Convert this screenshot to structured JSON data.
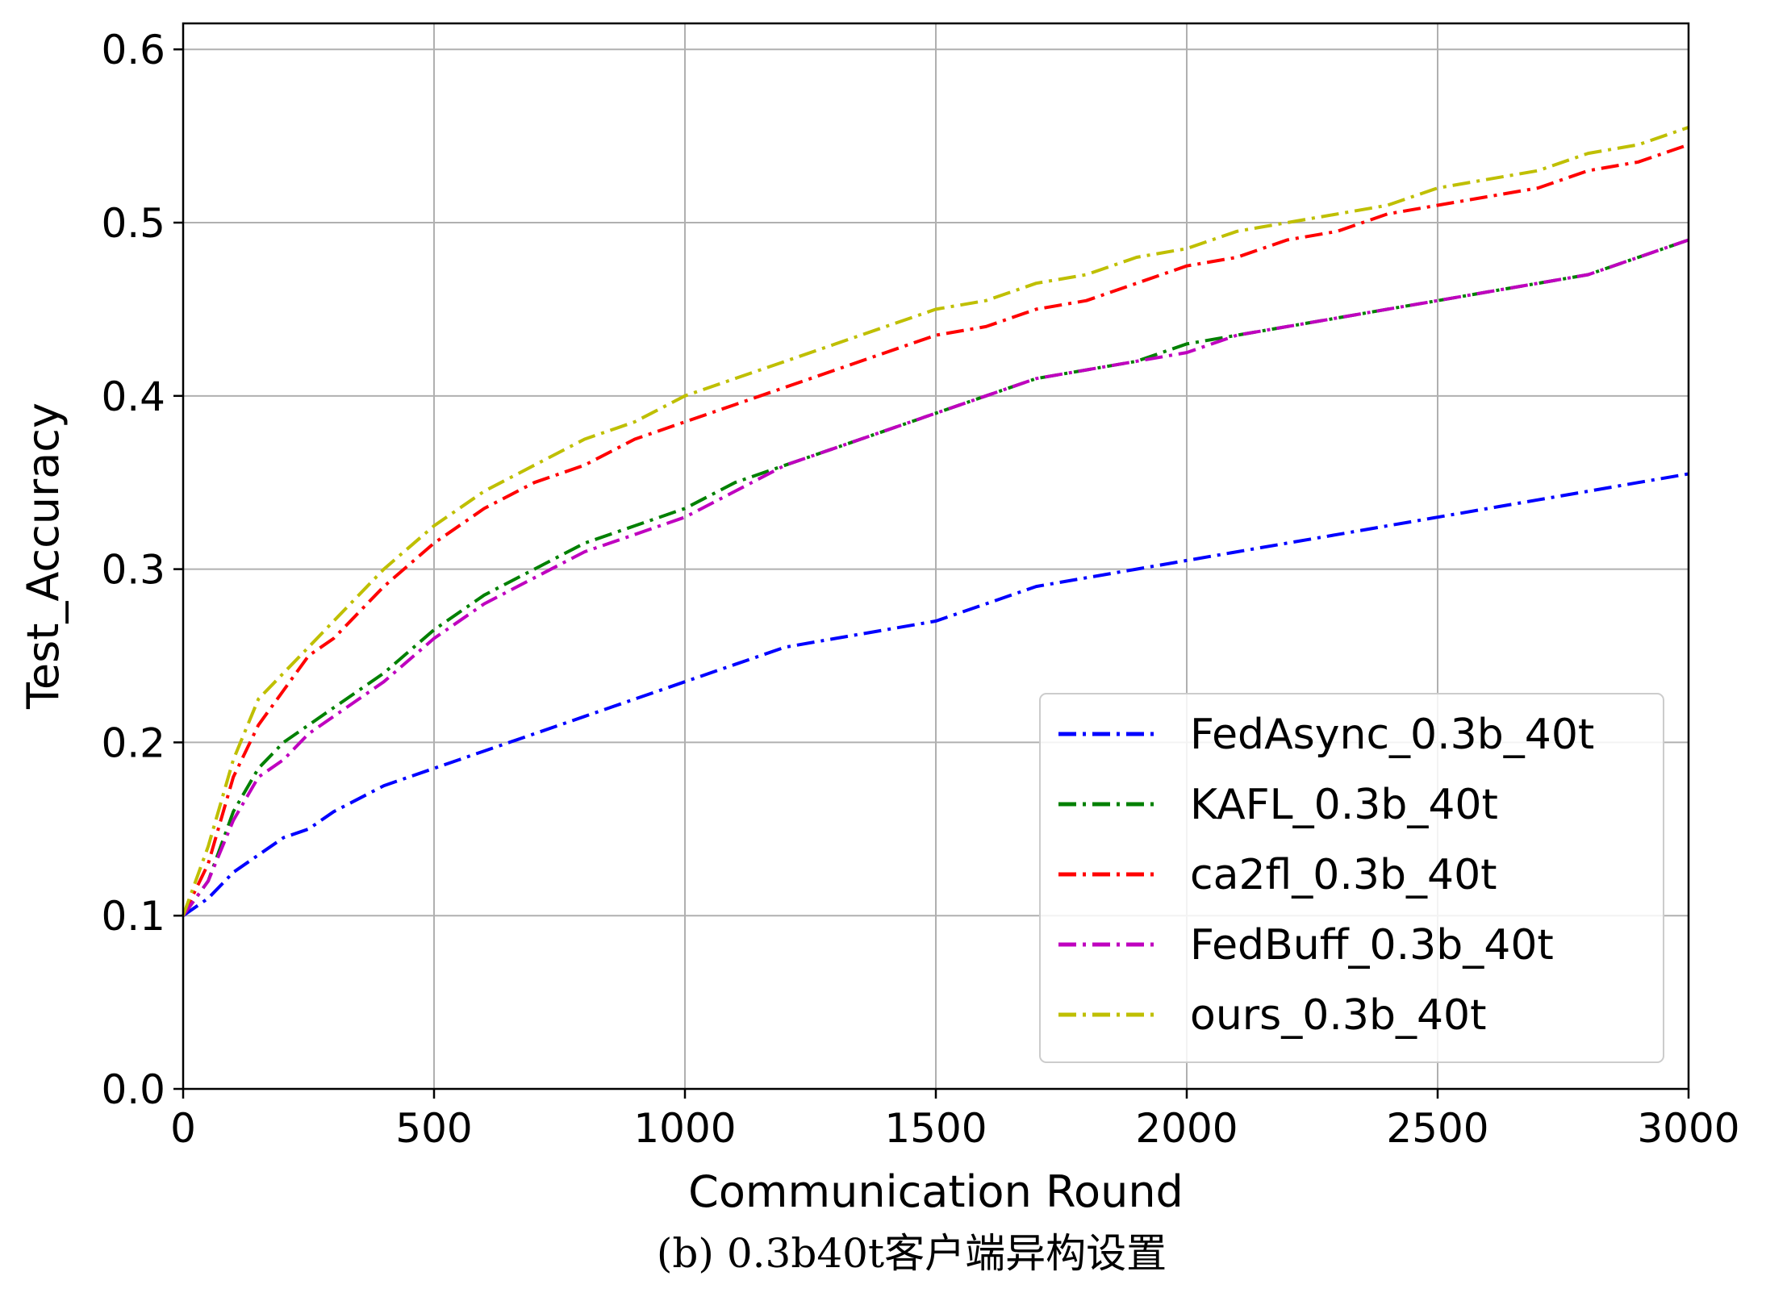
{
  "chart_data": {
    "type": "line",
    "xlabel": "Communication Round",
    "ylabel": "Test_Accuracy",
    "caption": "(b) 0.3b40t客户端异构设置",
    "xlim": [
      0,
      3000
    ],
    "ylim": [
      0.0,
      0.615
    ],
    "xticks": [
      "0",
      "500",
      "1000",
      "1500",
      "2000",
      "2500",
      "3000"
    ],
    "yticks": [
      "0.0",
      "0.1",
      "0.2",
      "0.3",
      "0.4",
      "0.5",
      "0.6"
    ],
    "grid": true,
    "legend_position": "lower right",
    "line_style": "dash-dot",
    "series": [
      {
        "name": "FedAsync_0.3b_40t",
        "color": "#0000ff",
        "x": [
          0,
          50,
          100,
          150,
          200,
          250,
          300,
          400,
          500,
          600,
          700,
          800,
          900,
          1000,
          1100,
          1200,
          1300,
          1400,
          1500,
          1600,
          1700,
          1800,
          1900,
          2000,
          2100,
          2200,
          2300,
          2400,
          2500,
          2600,
          2700,
          2800,
          2900,
          3000
        ],
        "y": [
          0.1,
          0.11,
          0.125,
          0.135,
          0.145,
          0.15,
          0.16,
          0.175,
          0.185,
          0.195,
          0.205,
          0.215,
          0.225,
          0.235,
          0.245,
          0.255,
          0.26,
          0.265,
          0.27,
          0.28,
          0.29,
          0.295,
          0.3,
          0.305,
          0.31,
          0.315,
          0.32,
          0.325,
          0.33,
          0.335,
          0.34,
          0.345,
          0.35,
          0.355
        ]
      },
      {
        "name": "KAFL_0.3b_40t",
        "color": "#008000",
        "x": [
          0,
          50,
          100,
          150,
          200,
          250,
          300,
          400,
          500,
          600,
          700,
          800,
          900,
          1000,
          1100,
          1200,
          1300,
          1400,
          1500,
          1600,
          1700,
          1800,
          1900,
          2000,
          2100,
          2200,
          2300,
          2400,
          2500,
          2600,
          2700,
          2800,
          2900,
          3000
        ],
        "y": [
          0.1,
          0.12,
          0.16,
          0.185,
          0.2,
          0.21,
          0.22,
          0.24,
          0.265,
          0.285,
          0.3,
          0.315,
          0.325,
          0.335,
          0.35,
          0.36,
          0.37,
          0.38,
          0.39,
          0.4,
          0.41,
          0.415,
          0.42,
          0.43,
          0.435,
          0.44,
          0.445,
          0.45,
          0.455,
          0.46,
          0.465,
          0.47,
          0.48,
          0.49
        ]
      },
      {
        "name": "ca2fl_0.3b_40t",
        "color": "#ff0000",
        "x": [
          0,
          50,
          100,
          150,
          200,
          250,
          300,
          400,
          500,
          600,
          700,
          800,
          900,
          1000,
          1100,
          1200,
          1300,
          1400,
          1500,
          1600,
          1700,
          1800,
          1900,
          2000,
          2100,
          2200,
          2300,
          2400,
          2500,
          2600,
          2700,
          2800,
          2900,
          3000
        ],
        "y": [
          0.1,
          0.13,
          0.18,
          0.21,
          0.23,
          0.25,
          0.26,
          0.29,
          0.315,
          0.335,
          0.35,
          0.36,
          0.375,
          0.385,
          0.395,
          0.405,
          0.415,
          0.425,
          0.435,
          0.44,
          0.45,
          0.455,
          0.465,
          0.475,
          0.48,
          0.49,
          0.495,
          0.505,
          0.51,
          0.515,
          0.52,
          0.53,
          0.535,
          0.545
        ]
      },
      {
        "name": "FedBuff_0.3b_40t",
        "color": "#bf00bf",
        "x": [
          0,
          50,
          100,
          150,
          200,
          250,
          300,
          400,
          500,
          600,
          700,
          800,
          900,
          1000,
          1100,
          1200,
          1300,
          1400,
          1500,
          1600,
          1700,
          1800,
          1900,
          2000,
          2100,
          2200,
          2300,
          2400,
          2500,
          2600,
          2700,
          2800,
          2900,
          3000
        ],
        "y": [
          0.1,
          0.12,
          0.155,
          0.18,
          0.19,
          0.205,
          0.215,
          0.235,
          0.26,
          0.28,
          0.295,
          0.31,
          0.32,
          0.33,
          0.345,
          0.36,
          0.37,
          0.38,
          0.39,
          0.4,
          0.41,
          0.415,
          0.42,
          0.425,
          0.435,
          0.44,
          0.445,
          0.45,
          0.455,
          0.46,
          0.465,
          0.47,
          0.48,
          0.49
        ]
      },
      {
        "name": "ours_0.3b_40t",
        "color": "#bfbf00",
        "x": [
          0,
          50,
          100,
          150,
          200,
          250,
          300,
          400,
          500,
          600,
          700,
          800,
          900,
          1000,
          1100,
          1200,
          1300,
          1400,
          1500,
          1600,
          1700,
          1800,
          1900,
          2000,
          2100,
          2200,
          2300,
          2400,
          2500,
          2600,
          2700,
          2800,
          2900,
          3000
        ],
        "y": [
          0.1,
          0.14,
          0.19,
          0.225,
          0.24,
          0.255,
          0.27,
          0.3,
          0.325,
          0.345,
          0.36,
          0.375,
          0.385,
          0.4,
          0.41,
          0.42,
          0.43,
          0.44,
          0.45,
          0.455,
          0.465,
          0.47,
          0.48,
          0.485,
          0.495,
          0.5,
          0.505,
          0.51,
          0.52,
          0.525,
          0.53,
          0.54,
          0.545,
          0.555
        ]
      }
    ]
  }
}
